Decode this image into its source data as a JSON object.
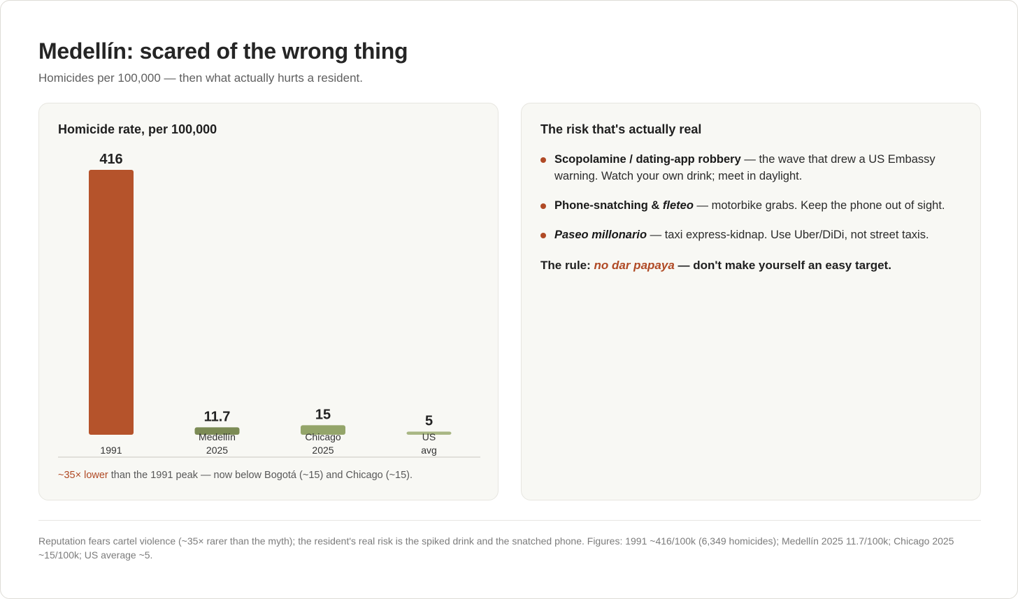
{
  "title": "Medellín: scared of the wrong thing",
  "subtitle": "Homicides per 100,000 — then what actually hurts a resident.",
  "colors": {
    "accent": "#b04a25",
    "bar_1991": "#b5532b",
    "bar_medellin": "#7c8b55",
    "bar_chicago": "#94a56a",
    "bar_us": "#a9b784"
  },
  "chart_panel": {
    "title": "Homicide rate, per 100,000",
    "note_accent": "~35× lower",
    "note_rest": " than the 1991 peak — now below Bogotá (~15) and Chicago (~15)."
  },
  "chart_data": {
    "type": "bar",
    "title": "Homicide rate, per 100,000",
    "categories": [
      [
        "1991"
      ],
      [
        "Medellín",
        "2025"
      ],
      [
        "Chicago",
        "2025"
      ],
      [
        "US",
        "avg"
      ]
    ],
    "values": [
      416,
      11.7,
      15,
      5
    ],
    "value_labels": [
      "416",
      "11.7",
      "15",
      "5"
    ],
    "bar_colors": [
      "#b5532b",
      "#7c8b55",
      "#94a56a",
      "#a9b784"
    ],
    "ylim": [
      0,
      416
    ],
    "grid": false,
    "legend": "none"
  },
  "risk_panel": {
    "title": "The risk that's actually real",
    "items": [
      {
        "lead": "Scopolamine / dating-app robbery",
        "lead_italic": "",
        "text": " — the wave that drew a US Embassy warning. Watch your own drink; meet in daylight."
      },
      {
        "lead": "Phone-snatching & ",
        "lead_italic": "fleteo",
        "text": " — motorbike grabs. Keep the phone out of sight."
      },
      {
        "lead": "",
        "lead_italic": "Paseo millonario",
        "text": " — taxi express-kidnap. Use Uber/DiDi, not street taxis."
      }
    ],
    "rule_prefix": "The rule: ",
    "rule_em": "no dar papaya",
    "rule_suffix": " — don't make yourself an easy target."
  },
  "footnote": "Reputation fears cartel violence (~35× rarer than the myth); the resident's real risk is the spiked drink and the snatched phone. Figures: 1991 ~416/100k (6,349 homicides); Medellín 2025 11.7/100k; Chicago 2025 ~15/100k; US average ~5."
}
